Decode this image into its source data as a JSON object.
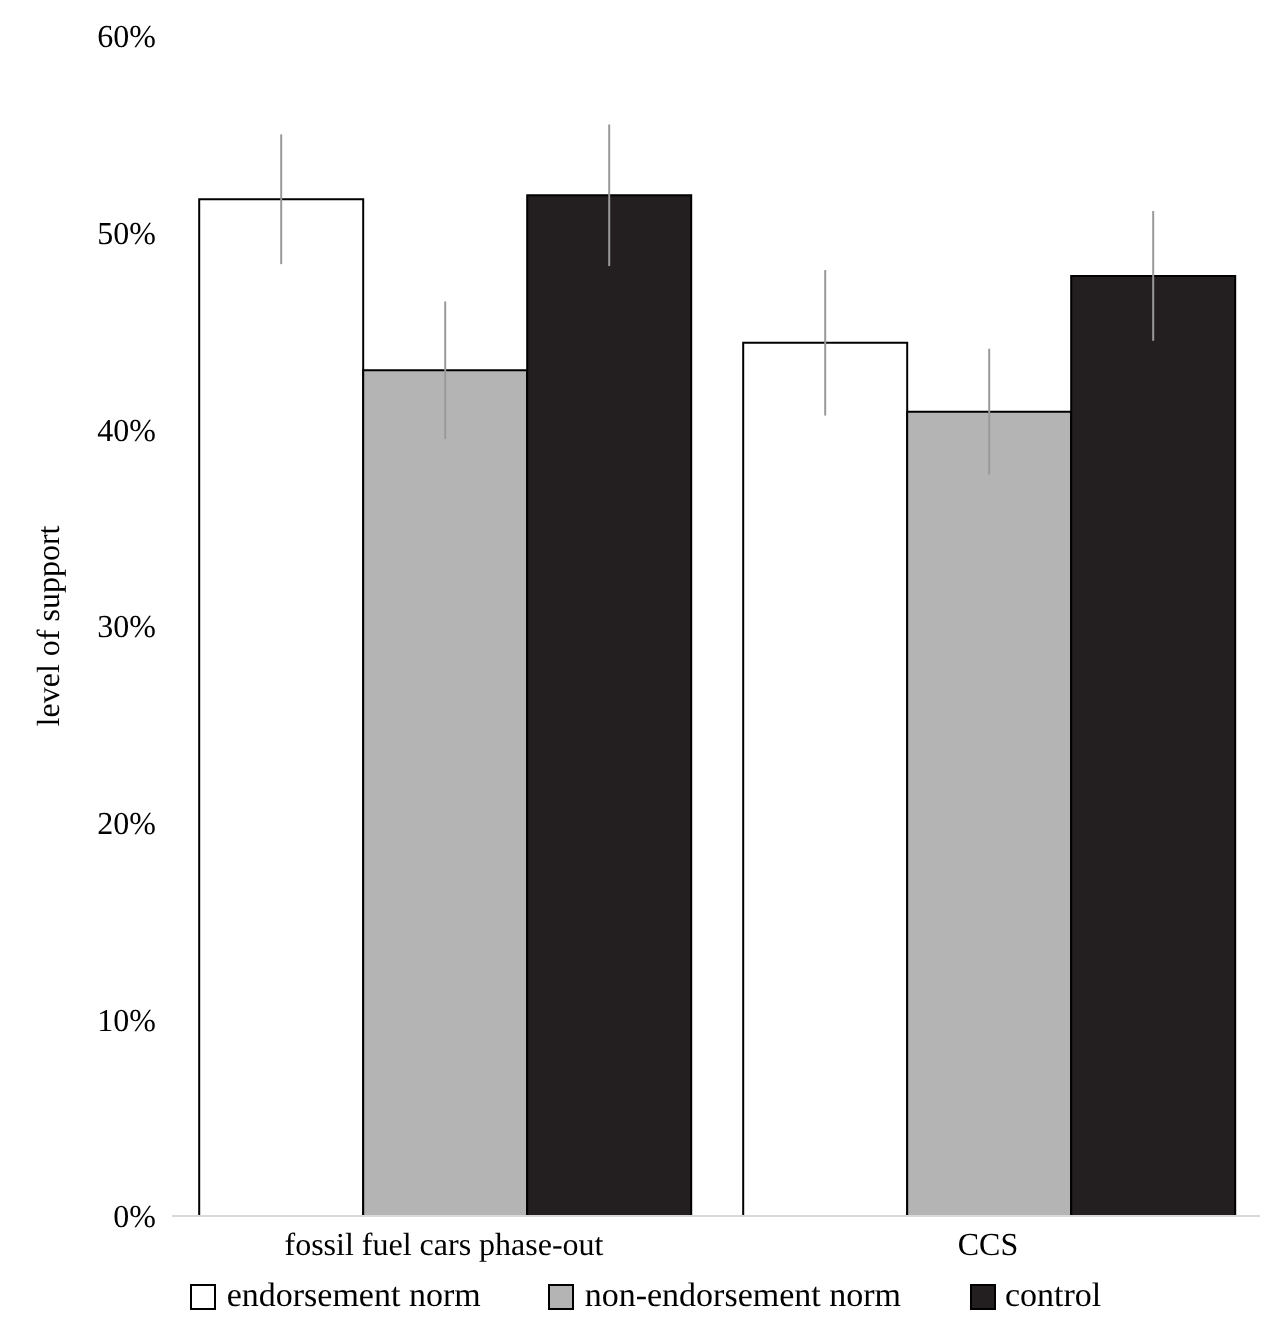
{
  "chart_data": {
    "type": "bar",
    "ylabel": "level of support",
    "categories": [
      "fossil fuel cars phase-out",
      "CCS"
    ],
    "series": [
      {
        "name": "endorsement norm",
        "color": "#ffffff",
        "values": [
          51.7,
          44.4
        ],
        "errors": [
          3.3,
          3.7
        ]
      },
      {
        "name": "non-endorsement norm",
        "color": "#b4b4b4",
        "values": [
          43.0,
          40.9
        ],
        "errors": [
          3.5,
          3.2
        ]
      },
      {
        "name": "control",
        "color": "#231f20",
        "values": [
          51.9,
          47.8
        ],
        "errors": [
          3.6,
          3.3
        ]
      }
    ],
    "ylim": [
      0,
      60
    ],
    "yticks": [
      {
        "value": 0,
        "label": "0%"
      },
      {
        "value": 10,
        "label": "10%"
      },
      {
        "value": 20,
        "label": "20%"
      },
      {
        "value": 30,
        "label": "30%"
      },
      {
        "value": 40,
        "label": "40%"
      },
      {
        "value": 50,
        "label": "50%"
      },
      {
        "value": 60,
        "label": "60%"
      }
    ],
    "grid": false,
    "legend": "bottom"
  }
}
